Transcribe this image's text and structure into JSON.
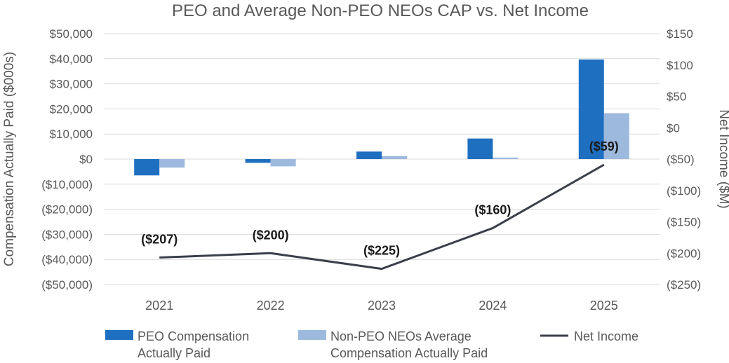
{
  "chart_data": {
    "type": "bar",
    "title": "PEO and Average Non-PEO NEOs CAP vs. Net Income",
    "ylabel": "Compensation Actually Paid ($000s)",
    "y2label": "Net Income ($M)",
    "categories": [
      "2021",
      "2022",
      "2023",
      "2024",
      "2025"
    ],
    "ylim": [
      -50000,
      50000
    ],
    "y2lim": [
      -250,
      150
    ],
    "yticks": [
      {
        "value": 50000,
        "label": "$50,000"
      },
      {
        "value": 40000,
        "label": "$40,000"
      },
      {
        "value": 30000,
        "label": "$30,000"
      },
      {
        "value": 20000,
        "label": "$20,000"
      },
      {
        "value": 10000,
        "label": "$10,000"
      },
      {
        "value": 0,
        "label": "$0"
      },
      {
        "value": -10000,
        "label": "($10,000)"
      },
      {
        "value": -20000,
        "label": "($20,000)"
      },
      {
        "value": -30000,
        "label": "($30,000)"
      },
      {
        "value": -40000,
        "label": "($40,000)"
      },
      {
        "value": -50000,
        "label": "($50,000)"
      }
    ],
    "y2ticks": [
      {
        "value": 150,
        "label": "$150"
      },
      {
        "value": 100,
        "label": "$100"
      },
      {
        "value": 50,
        "label": "$50"
      },
      {
        "value": 0,
        "label": "$0"
      },
      {
        "value": -50,
        "label": "($50)"
      },
      {
        "value": -100,
        "label": "($100)"
      },
      {
        "value": -150,
        "label": "($150)"
      },
      {
        "value": -200,
        "label": "($200)"
      },
      {
        "value": -250,
        "label": "($250)"
      }
    ],
    "grid": true,
    "legend_position": "bottom",
    "series": [
      {
        "name": "PEO Compensation Actually Paid",
        "legend_lines": [
          "PEO Compensation",
          "Actually Paid"
        ],
        "type": "bar",
        "axis": "left",
        "color": "#1F6FC1",
        "values": [
          -6500,
          -1500,
          3000,
          8200,
          39700
        ]
      },
      {
        "name": "Non-PEO NEOs Average Compensation Actually Paid",
        "legend_lines": [
          "Non-PEO NEOs Average",
          "Compensation Actually Paid"
        ],
        "type": "bar",
        "axis": "left",
        "color": "#9DB9DD",
        "values": [
          -3400,
          -2900,
          1200,
          600,
          18300
        ]
      },
      {
        "name": "Net Income",
        "legend_lines": [
          "Net Income"
        ],
        "type": "line",
        "axis": "right",
        "color": "#3A3F4A",
        "values": [
          -207,
          -200,
          -225,
          -160,
          -59
        ],
        "labels": [
          "($207)",
          "($200)",
          "($225)",
          "($160)",
          "($59)"
        ]
      }
    ]
  }
}
